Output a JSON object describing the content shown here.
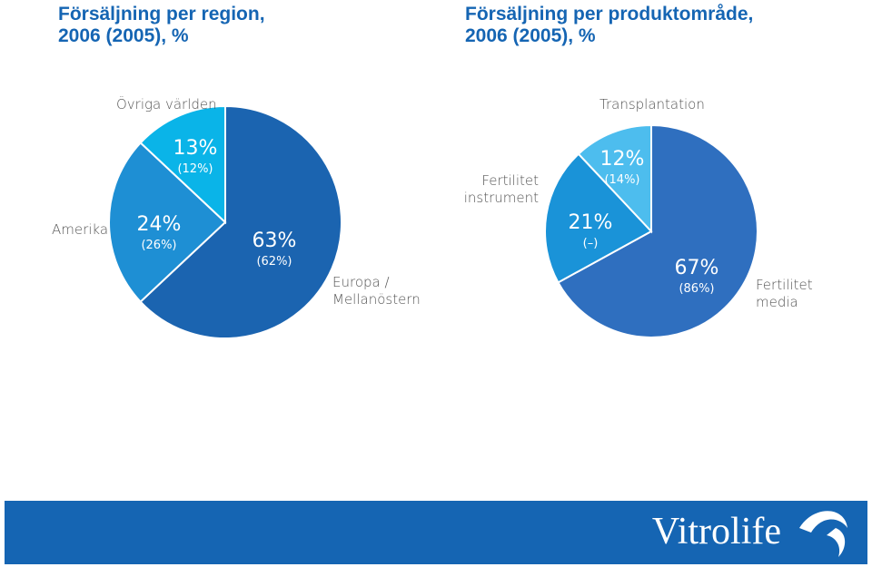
{
  "chart_data": [
    {
      "type": "pie",
      "title": "Försäljning per region, 2006 (2005), %",
      "categories": [
        "Europa / Mellanöstern",
        "Amerika",
        "Övriga världen"
      ],
      "values": [
        63,
        24,
        13
      ],
      "value_labels": [
        "63%",
        "24%",
        "13%"
      ],
      "previous_values": [
        62,
        26,
        12
      ],
      "previous_value_labels": [
        "(62%)",
        "(26%)",
        "(12%)"
      ],
      "colors": [
        "#1b64b0",
        "#1e8fd4",
        "#0ab4e8"
      ]
    },
    {
      "type": "pie",
      "title": "Försäljning per produktområde, 2006 (2005), %",
      "categories": [
        "Fertilitet media",
        "Fertilitet instrument",
        "Transplantation"
      ],
      "values": [
        67,
        21,
        12
      ],
      "value_labels": [
        "67%",
        "21%",
        "12%"
      ],
      "previous_values": [
        86,
        null,
        14
      ],
      "previous_value_labels": [
        "(86%)",
        "(–)",
        "(14%)"
      ],
      "colors": [
        "#2f6fbf",
        "#1a93d8",
        "#4dbdee"
      ]
    }
  ],
  "footer": {
    "brand": "Vitrolife"
  }
}
